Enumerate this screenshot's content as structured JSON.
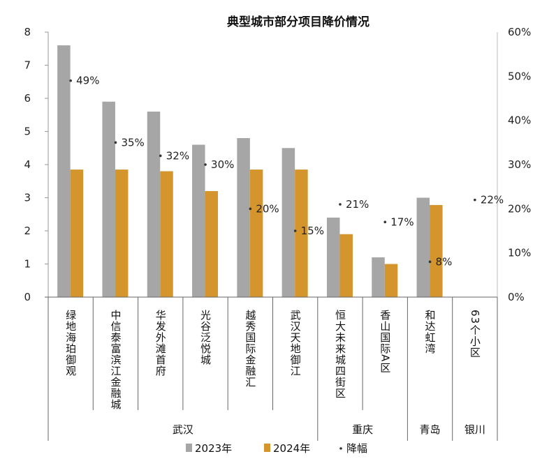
{
  "chart_data": {
    "type": "bar",
    "title": "典型城市部分项目降价情况",
    "categories": [
      "绿地海珀御观",
      "中信泰富滨江金融城",
      "华发外滩首府",
      "光谷泛悦城",
      "越秀国际金融汇",
      "武汉天地御江",
      "恒大未来城四街区",
      "香山国际A区",
      "和达虹湾",
      "63个小区"
    ],
    "groups": [
      {
        "name": "武汉",
        "count": 6
      },
      {
        "name": "重庆",
        "count": 2
      },
      {
        "name": "青岛",
        "count": 1
      },
      {
        "name": "银川",
        "count": 1
      }
    ],
    "series": [
      {
        "name": "2023年",
        "axis": "left",
        "kind": "bar",
        "color": "#a6a6a6",
        "values": [
          7.6,
          5.9,
          5.6,
          4.6,
          4.8,
          4.5,
          2.4,
          1.2,
          3.0,
          null
        ]
      },
      {
        "name": "2024年",
        "axis": "left",
        "kind": "bar",
        "color": "#d4962c",
        "values": [
          3.85,
          3.85,
          3.8,
          3.2,
          3.85,
          3.85,
          1.9,
          1.0,
          2.78,
          null
        ]
      },
      {
        "name": "降幅",
        "axis": "right",
        "kind": "marker",
        "color": "#333333",
        "values": [
          49,
          35,
          32,
          30,
          20,
          15,
          21,
          17,
          8,
          22
        ],
        "labels": [
          "49%",
          "35%",
          "32%",
          "30%",
          "20%",
          "15%",
          "21%",
          "17%",
          "8%",
          "22%"
        ]
      }
    ],
    "ylim_left": [
      0,
      8
    ],
    "yticks_left": [
      "0",
      "1",
      "2",
      "3",
      "4",
      "5",
      "6",
      "7",
      "8"
    ],
    "ylim_right": [
      0,
      60
    ],
    "yticks_right": [
      "0%",
      "10%",
      "20%",
      "30%",
      "40%",
      "50%",
      "60%"
    ],
    "legend_position": "bottom",
    "grid": false
  }
}
